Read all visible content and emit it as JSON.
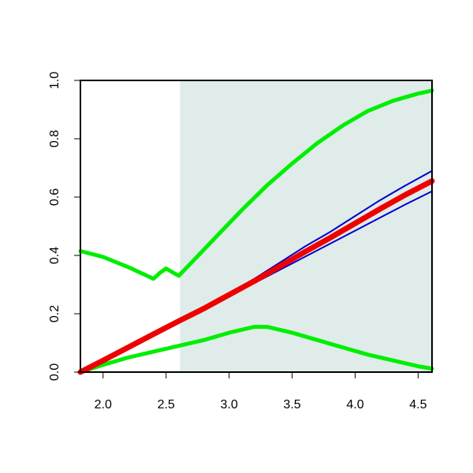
{
  "chart_data": {
    "type": "line",
    "title": "",
    "xlabel": "",
    "ylabel": "",
    "xlim": [
      1.82,
      4.61
    ],
    "ylim": [
      0.0,
      1.0
    ],
    "x_ticks": [
      2.0,
      2.5,
      3.0,
      3.5,
      4.0,
      4.5
    ],
    "x_tick_labels": [
      "2.0",
      "2.5",
      "3.0",
      "3.5",
      "4.0",
      "4.5"
    ],
    "y_ticks": [
      0.0,
      0.2,
      0.4,
      0.6,
      0.8,
      1.0
    ],
    "y_tick_labels": [
      "0.0",
      "0.2",
      "0.4",
      "0.6",
      "0.8",
      "1.0"
    ],
    "grid": false,
    "legend": "none",
    "shaded_region": {
      "x_start": 2.61,
      "x_end": 4.61,
      "color": "#dfecea"
    },
    "series": [
      {
        "color": "#00ee00",
        "role": "upper band",
        "points": [
          [
            1.82,
            0.415
          ],
          [
            2.0,
            0.395
          ],
          [
            2.2,
            0.36
          ],
          [
            2.4,
            0.32
          ],
          [
            2.45,
            0.34
          ],
          [
            2.5,
            0.355
          ],
          [
            2.6,
            0.33
          ],
          [
            2.7,
            0.375
          ],
          [
            2.9,
            0.465
          ],
          [
            3.1,
            0.555
          ],
          [
            3.3,
            0.64
          ],
          [
            3.5,
            0.715
          ],
          [
            3.7,
            0.785
          ],
          [
            3.9,
            0.845
          ],
          [
            4.1,
            0.895
          ],
          [
            4.3,
            0.93
          ],
          [
            4.5,
            0.955
          ],
          [
            4.61,
            0.965
          ]
        ]
      },
      {
        "color": "#00ee00",
        "role": "lower band",
        "points": [
          [
            1.82,
            0.0
          ],
          [
            2.0,
            0.025
          ],
          [
            2.2,
            0.05
          ],
          [
            2.4,
            0.07
          ],
          [
            2.6,
            0.09
          ],
          [
            2.8,
            0.11
          ],
          [
            3.0,
            0.135
          ],
          [
            3.2,
            0.155
          ],
          [
            3.3,
            0.155
          ],
          [
            3.5,
            0.135
          ],
          [
            3.7,
            0.11
          ],
          [
            3.9,
            0.085
          ],
          [
            4.1,
            0.06
          ],
          [
            4.3,
            0.04
          ],
          [
            4.5,
            0.02
          ],
          [
            4.61,
            0.012
          ]
        ]
      },
      {
        "color": "#0000cc",
        "role": "upper interval",
        "points": [
          [
            1.82,
            0.0
          ],
          [
            2.0,
            0.04
          ],
          [
            2.2,
            0.085
          ],
          [
            2.4,
            0.13
          ],
          [
            2.6,
            0.175
          ],
          [
            2.8,
            0.22
          ],
          [
            3.0,
            0.27
          ],
          [
            3.2,
            0.32
          ],
          [
            3.4,
            0.375
          ],
          [
            3.6,
            0.43
          ],
          [
            3.8,
            0.48
          ],
          [
            4.0,
            0.535
          ],
          [
            4.2,
            0.59
          ],
          [
            4.4,
            0.64
          ],
          [
            4.61,
            0.69
          ]
        ]
      },
      {
        "color": "#0000cc",
        "role": "lower interval",
        "points": [
          [
            1.82,
            0.0
          ],
          [
            2.0,
            0.04
          ],
          [
            2.2,
            0.085
          ],
          [
            2.4,
            0.13
          ],
          [
            2.6,
            0.175
          ],
          [
            2.8,
            0.215
          ],
          [
            3.0,
            0.26
          ],
          [
            3.2,
            0.305
          ],
          [
            3.4,
            0.35
          ],
          [
            3.6,
            0.395
          ],
          [
            3.8,
            0.44
          ],
          [
            4.0,
            0.485
          ],
          [
            4.2,
            0.53
          ],
          [
            4.4,
            0.575
          ],
          [
            4.61,
            0.62
          ]
        ]
      },
      {
        "color": "#ee0000",
        "role": "main curve",
        "points": [
          [
            1.82,
            0.0
          ],
          [
            2.0,
            0.04
          ],
          [
            2.2,
            0.085
          ],
          [
            2.4,
            0.13
          ],
          [
            2.6,
            0.175
          ],
          [
            2.8,
            0.218
          ],
          [
            3.0,
            0.265
          ],
          [
            3.2,
            0.312
          ],
          [
            3.4,
            0.362
          ],
          [
            3.6,
            0.412
          ],
          [
            3.8,
            0.46
          ],
          [
            4.0,
            0.51
          ],
          [
            4.2,
            0.56
          ],
          [
            4.4,
            0.608
          ],
          [
            4.61,
            0.655
          ]
        ]
      }
    ]
  }
}
